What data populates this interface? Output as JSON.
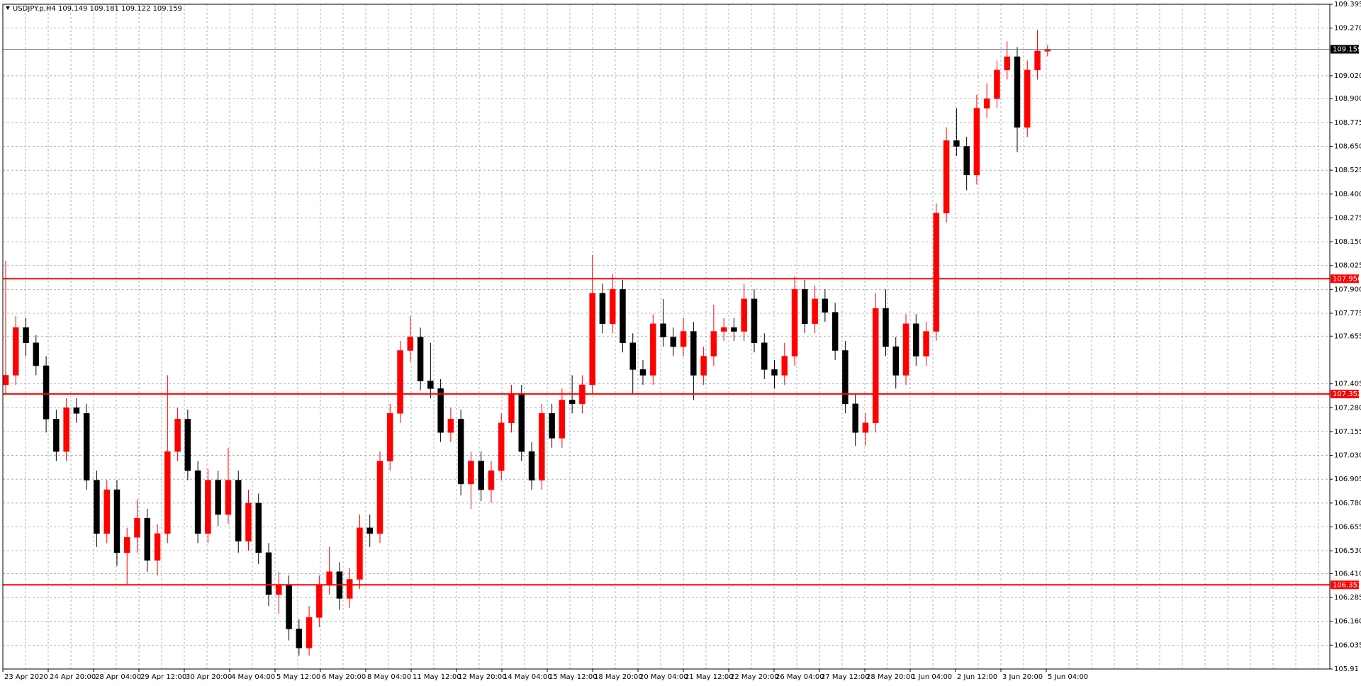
{
  "chart_data": {
    "type": "candlestick",
    "header": "USDJPY.p,H4  109.149 109.181 109.122 109.159",
    "bull_color": "#ff0000",
    "bear_color": "#000000",
    "level_color": "#ff0000",
    "grid": true,
    "ylim": [
      105.91,
      109.395
    ],
    "yticks": [
      105.91,
      106.035,
      {
        "value": 106.16,
        "label": "106.160"
      },
      106.285,
      {
        "value": 106.41,
        "label": "106.410"
      },
      {
        "value": 106.53,
        "label": "106.530"
      },
      106.655,
      {
        "value": 106.78,
        "label": "106.780"
      },
      106.905,
      {
        "value": 107.03,
        "label": "107.030"
      },
      107.155,
      {
        "value": 107.28,
        "label": "107.280"
      },
      107.405,
      107.655,
      107.775,
      {
        "value": 107.9,
        "label": "107.900"
      },
      108.025,
      {
        "value": 108.15,
        "label": "108.150"
      },
      108.275,
      {
        "value": 108.4,
        "label": "108.400"
      },
      108.525,
      {
        "value": 108.65,
        "label": "108.650"
      },
      108.775,
      {
        "value": 108.9,
        "label": "108.900"
      },
      {
        "value": 109.02,
        "label": "109.020"
      },
      {
        "value": 109.27,
        "label": "109.270"
      },
      109.395
    ],
    "levels": [
      107.956,
      107.352,
      106.351
    ],
    "current_price": 109.159,
    "x_labels": [
      "23 Apr 2020",
      "24 Apr 20:00",
      "28 Apr 04:00",
      "29 Apr 12:00",
      "30 Apr 20:00",
      "4 May 04:00",
      "5 May 12:00",
      "6 May 20:00",
      "8 May 04:00",
      "11 May 12:00",
      "12 May 20:00",
      "14 May 04:00",
      "15 May 12:00",
      "18 May 20:00",
      "20 May 04:00",
      "21 May 12:00",
      "22 May 20:00",
      "26 May 04:00",
      "27 May 12:00",
      "28 May 20:00",
      "1 Jun 04:00",
      "2 Jun 12:00",
      "3 Jun 20:00",
      "5 Jun 04:00"
    ],
    "candles": [
      [
        107.4,
        108.05,
        107.35,
        107.45
      ],
      [
        107.45,
        107.76,
        107.4,
        107.7
      ],
      [
        107.7,
        107.75,
        107.55,
        107.62
      ],
      [
        107.62,
        107.66,
        107.45,
        107.5
      ],
      [
        107.5,
        107.55,
        107.15,
        107.22
      ],
      [
        107.22,
        107.27,
        107.0,
        107.05
      ],
      [
        107.05,
        107.33,
        107.0,
        107.28
      ],
      [
        107.28,
        107.33,
        107.2,
        107.25
      ],
      [
        107.25,
        107.3,
        106.85,
        106.9
      ],
      [
        106.9,
        106.95,
        106.55,
        106.62
      ],
      [
        106.62,
        106.9,
        106.57,
        106.85
      ],
      [
        106.85,
        106.9,
        106.45,
        106.52
      ],
      [
        106.52,
        106.65,
        106.35,
        106.6
      ],
      [
        106.6,
        106.8,
        106.52,
        106.7
      ],
      [
        106.7,
        106.75,
        106.42,
        106.48
      ],
      [
        106.48,
        106.67,
        106.4,
        106.62
      ],
      [
        106.62,
        107.45,
        106.57,
        107.05
      ],
      [
        107.05,
        107.28,
        107.0,
        107.22
      ],
      [
        107.22,
        107.27,
        106.9,
        106.95
      ],
      [
        106.95,
        107.0,
        106.57,
        106.62
      ],
      [
        106.62,
        106.96,
        106.57,
        106.9
      ],
      [
        106.9,
        106.95,
        106.66,
        106.72
      ],
      [
        106.72,
        107.07,
        106.67,
        106.9
      ],
      [
        106.9,
        106.95,
        106.52,
        106.58
      ],
      [
        106.58,
        106.85,
        106.53,
        106.78
      ],
      [
        106.78,
        106.83,
        106.46,
        106.52
      ],
      [
        106.52,
        106.57,
        106.24,
        106.3
      ],
      [
        106.3,
        106.42,
        106.2,
        106.35
      ],
      [
        106.35,
        106.4,
        106.06,
        106.12
      ],
      [
        106.12,
        106.17,
        105.98,
        106.02
      ],
      [
        106.02,
        106.24,
        105.98,
        106.18
      ],
      [
        106.18,
        106.4,
        106.13,
        106.35
      ],
      [
        106.35,
        106.55,
        106.3,
        106.42
      ],
      [
        106.42,
        106.47,
        106.22,
        106.28
      ],
      [
        106.28,
        106.44,
        106.23,
        106.38
      ],
      [
        106.38,
        106.72,
        106.33,
        106.65
      ],
      [
        106.65,
        106.72,
        106.55,
        106.62
      ],
      [
        106.62,
        107.05,
        106.57,
        107.0
      ],
      [
        107.0,
        107.3,
        106.95,
        107.25
      ],
      [
        107.25,
        107.63,
        107.2,
        107.58
      ],
      [
        107.58,
        107.76,
        107.52,
        107.65
      ],
      [
        107.65,
        107.7,
        107.37,
        107.42
      ],
      [
        107.42,
        107.62,
        107.33,
        107.38
      ],
      [
        107.38,
        107.43,
        107.1,
        107.15
      ],
      [
        107.15,
        107.28,
        107.1,
        107.22
      ],
      [
        107.22,
        107.27,
        106.82,
        106.88
      ],
      [
        106.88,
        107.05,
        106.75,
        107.0
      ],
      [
        107.0,
        107.05,
        106.79,
        106.85
      ],
      [
        106.85,
        107.0,
        106.78,
        106.95
      ],
      [
        106.95,
        107.25,
        106.9,
        107.2
      ],
      [
        107.2,
        107.4,
        107.15,
        107.35
      ],
      [
        107.35,
        107.4,
        107.0,
        107.05
      ],
      [
        107.05,
        107.1,
        106.85,
        106.9
      ],
      [
        106.9,
        107.3,
        106.85,
        107.25
      ],
      [
        107.25,
        107.3,
        107.07,
        107.12
      ],
      [
        107.12,
        107.38,
        107.07,
        107.32
      ],
      [
        107.32,
        107.45,
        107.25,
        107.3
      ],
      [
        107.3,
        107.45,
        107.25,
        107.4
      ],
      [
        107.4,
        108.08,
        107.35,
        107.88
      ],
      [
        107.88,
        107.93,
        107.67,
        107.72
      ],
      [
        107.72,
        107.98,
        107.67,
        107.9
      ],
      [
        107.9,
        107.95,
        107.57,
        107.62
      ],
      [
        107.62,
        107.67,
        107.35,
        107.48
      ],
      [
        107.48,
        107.53,
        107.4,
        107.45
      ],
      [
        107.45,
        107.77,
        107.4,
        107.72
      ],
      [
        107.72,
        107.85,
        107.6,
        107.65
      ],
      [
        107.65,
        107.7,
        107.55,
        107.6
      ],
      [
        107.6,
        107.75,
        107.55,
        107.68
      ],
      [
        107.68,
        107.73,
        107.32,
        107.45
      ],
      [
        107.45,
        107.6,
        107.4,
        107.55
      ],
      [
        107.55,
        107.82,
        107.5,
        107.68
      ],
      [
        107.68,
        107.75,
        107.63,
        107.7
      ],
      [
        107.7,
        107.75,
        107.63,
        107.68
      ],
      [
        107.68,
        107.93,
        107.63,
        107.85
      ],
      [
        107.85,
        107.9,
        107.57,
        107.62
      ],
      [
        107.62,
        107.67,
        107.43,
        107.48
      ],
      [
        107.48,
        107.53,
        107.38,
        107.45
      ],
      [
        107.45,
        107.62,
        107.4,
        107.55
      ],
      [
        107.55,
        107.97,
        107.5,
        107.9
      ],
      [
        107.9,
        107.95,
        107.67,
        107.72
      ],
      [
        107.72,
        107.92,
        107.67,
        107.85
      ],
      [
        107.85,
        107.9,
        107.73,
        107.78
      ],
      [
        107.78,
        107.83,
        107.53,
        107.58
      ],
      [
        107.58,
        107.63,
        107.25,
        107.3
      ],
      [
        107.3,
        107.35,
        107.08,
        107.15
      ],
      [
        107.15,
        107.25,
        107.08,
        107.2
      ],
      [
        107.2,
        107.88,
        107.15,
        107.8
      ],
      [
        107.8,
        107.9,
        107.55,
        107.6
      ],
      [
        107.6,
        107.65,
        107.38,
        107.45
      ],
      [
        107.45,
        107.77,
        107.4,
        107.72
      ],
      [
        107.72,
        107.77,
        107.5,
        107.55
      ],
      [
        107.55,
        107.73,
        107.5,
        107.68
      ],
      [
        107.68,
        108.35,
        107.63,
        108.3
      ],
      [
        108.3,
        108.75,
        108.25,
        108.68
      ],
      [
        108.68,
        108.85,
        108.6,
        108.65
      ],
      [
        108.65,
        108.7,
        108.42,
        108.5
      ],
      [
        108.5,
        108.92,
        108.45,
        108.85
      ],
      [
        108.85,
        108.98,
        108.8,
        108.9
      ],
      [
        108.9,
        109.1,
        108.85,
        109.05
      ],
      [
        109.05,
        109.2,
        109.0,
        109.12
      ],
      [
        109.12,
        109.17,
        108.62,
        108.75
      ],
      [
        108.75,
        109.1,
        108.7,
        109.05
      ],
      [
        109.05,
        109.26,
        109.0,
        109.15
      ],
      [
        109.149,
        109.181,
        109.122,
        109.159
      ]
    ]
  }
}
